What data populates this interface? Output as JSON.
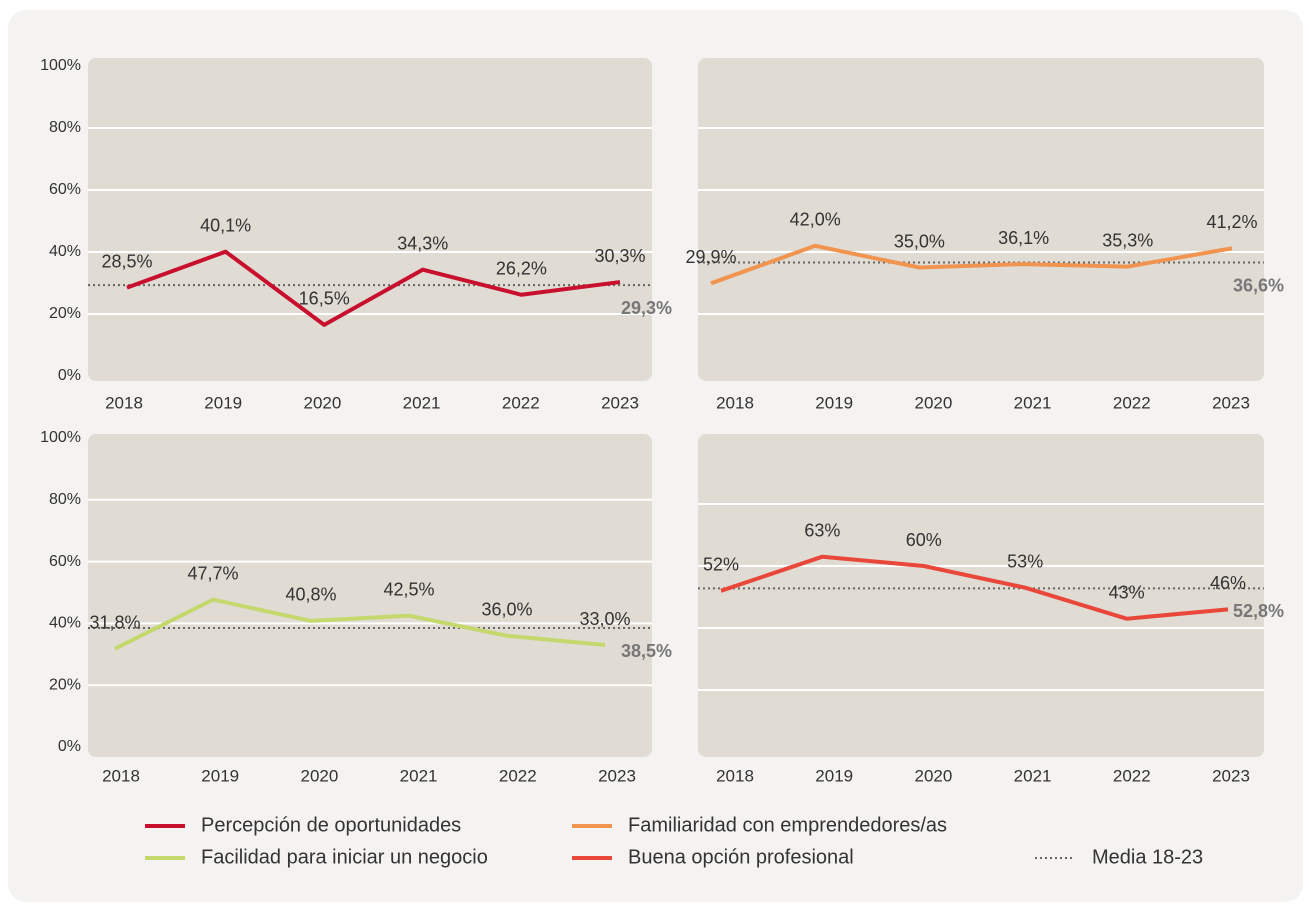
{
  "chart_data": [
    {
      "type": "line",
      "categories": [
        "2018",
        "2019",
        "2020",
        "2021",
        "2022",
        "2023"
      ],
      "series": [
        {
          "name": "Percepción de oportunidades",
          "color": "#c8102e",
          "values": [
            28.5,
            40.1,
            16.5,
            34.3,
            26.2,
            30.3
          ],
          "value_labels": [
            "28,5%",
            "40,1%",
            "16,5%",
            "34,3%",
            "26,2%",
            "30,3%"
          ]
        }
      ],
      "mean": {
        "value": 29.3,
        "label": "29,3%"
      },
      "ylim": [
        0,
        100
      ],
      "yticks": [
        {
          "value": 0,
          "label": "0%"
        },
        {
          "value": 20,
          "label": "20%"
        },
        {
          "value": 40,
          "label": "40%"
        },
        {
          "value": 60,
          "label": "60%"
        },
        {
          "value": 80,
          "label": "80%"
        },
        {
          "value": 100,
          "label": "100%"
        }
      ],
      "show_ytick_labels": true
    },
    {
      "type": "line",
      "categories": [
        "2018",
        "2019",
        "2020",
        "2021",
        "2022",
        "2023"
      ],
      "series": [
        {
          "name": "Familiaridad con emprendedores/as",
          "color": "#f0944f",
          "values": [
            29.9,
            42.0,
            35.0,
            36.1,
            35.3,
            41.2
          ],
          "value_labels": [
            "29,9%",
            "42,0%",
            "35,0%",
            "36,1%",
            "35,3%",
            "41,2%"
          ]
        }
      ],
      "mean": {
        "value": 36.6,
        "label": "36,6%"
      },
      "ylim": [
        0,
        100
      ],
      "yticks": [
        {
          "value": 0,
          "label": "0%"
        },
        {
          "value": 20,
          "label": "20%"
        },
        {
          "value": 40,
          "label": "40%"
        },
        {
          "value": 60,
          "label": "60%"
        },
        {
          "value": 80,
          "label": "80%"
        },
        {
          "value": 100,
          "label": "100%"
        }
      ],
      "show_ytick_labels": false
    },
    {
      "type": "line",
      "categories": [
        "2018",
        "2019",
        "2020",
        "2021",
        "2022",
        "2023"
      ],
      "series": [
        {
          "name": "Facilidad para iniciar un negocio",
          "color": "#c5d86d",
          "values": [
            31.8,
            47.7,
            40.8,
            42.5,
            36.0,
            33.0
          ],
          "value_labels": [
            "31,8%",
            "47,7%",
            "40,8%",
            "42,5%",
            "36,0%",
            "33,0%"
          ]
        }
      ],
      "mean": {
        "value": 38.5,
        "label": "38,5%"
      },
      "ylim": [
        0,
        100
      ],
      "yticks": [
        {
          "value": 0,
          "label": "0%"
        },
        {
          "value": 20,
          "label": "20%"
        },
        {
          "value": 40,
          "label": "40%"
        },
        {
          "value": 60,
          "label": "60%"
        },
        {
          "value": 80,
          "label": "80%"
        },
        {
          "value": 100,
          "label": "100%"
        }
      ],
      "show_ytick_labels": true
    },
    {
      "type": "line",
      "categories": [
        "2018",
        "2019",
        "2020",
        "2021",
        "2022",
        "2023"
      ],
      "series": [
        {
          "name": "Buena opción profesional",
          "color": "#e8473a",
          "values": [
            52,
            63,
            60,
            53,
            43,
            46
          ],
          "value_labels": [
            "52%",
            "63%",
            "60%",
            "53%",
            "43%",
            "46%"
          ]
        }
      ],
      "mean": {
        "value": 52.8,
        "label": "52,8%"
      },
      "ylim": [
        0,
        100
      ],
      "yticks": [
        {
          "value": 0,
          "label": "0%"
        },
        {
          "value": 20,
          "label": "20%"
        },
        {
          "value": 40,
          "label": "40%"
        },
        {
          "value": 60,
          "label": "60%"
        },
        {
          "value": 80,
          "label": "80%"
        },
        {
          "value": 100,
          "label": "100%"
        }
      ],
      "show_ytick_labels": false
    }
  ],
  "mean_legend": {
    "name": "Media 18-23",
    "color": "#666666"
  }
}
